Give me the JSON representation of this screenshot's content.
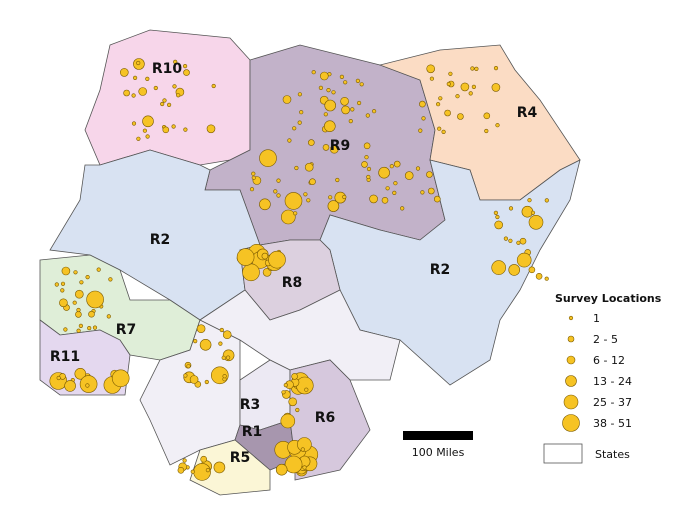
{
  "map": {
    "regions": [
      {
        "id": "R10",
        "label": "R10",
        "color": "#f7d6ea"
      },
      {
        "id": "R9",
        "label": "R9",
        "color": "#c2b2c9"
      },
      {
        "id": "R4",
        "label": "R4",
        "color": "#fbdcc4"
      },
      {
        "id": "R2w",
        "label": "R2",
        "color": "#d8e2f2"
      },
      {
        "id": "R2e",
        "label": "R2",
        "color": "#d8e2f2"
      },
      {
        "id": "R8",
        "label": "R8",
        "color": "#dcd0df"
      },
      {
        "id": "R7",
        "label": "R7",
        "color": "#dfeed8"
      },
      {
        "id": "R11",
        "label": "R11",
        "color": "#e4d8ef"
      },
      {
        "id": "R5s",
        "label": "",
        "color": "#f1eff6"
      },
      {
        "id": "SC",
        "label": "",
        "color": "#f1eff6"
      },
      {
        "id": "R3",
        "label": "R3",
        "color": "#ece9f3"
      },
      {
        "id": "R1",
        "label": "R1",
        "color": "#a796ae"
      },
      {
        "id": "R5",
        "label": "R5",
        "color": "#fbf6d6"
      },
      {
        "id": "R6",
        "label": "R6",
        "color": "#d6c8dd"
      }
    ],
    "point_color": "#f6c324",
    "scale_bar_label": "100 Miles"
  },
  "legend": {
    "title": "Survey Locations",
    "classes": [
      "1",
      "2 - 5",
      "6 - 12",
      "13 - 24",
      "25 - 37",
      "38 - 51"
    ],
    "states_label": "States"
  }
}
